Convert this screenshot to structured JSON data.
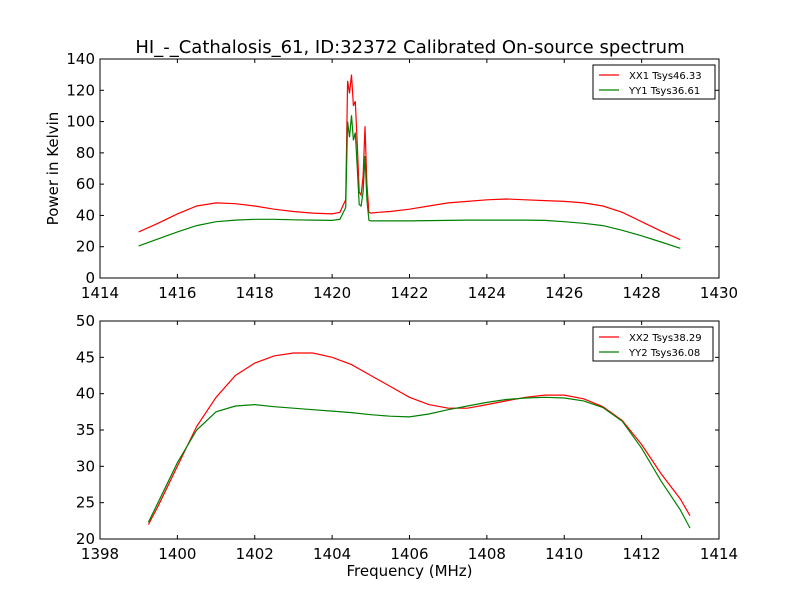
{
  "chart_data": [
    {
      "type": "line",
      "title": "HI_-_Cathalosis_61, ID:32372 Calibrated On-source spectrum",
      "xlabel": "",
      "ylabel": "Power in Kelvin",
      "xlim": [
        1414,
        1430
      ],
      "ylim": [
        0,
        140
      ],
      "xticks": [
        "1414",
        "1416",
        "1418",
        "1420",
        "1422",
        "1424",
        "1426",
        "1428",
        "1430"
      ],
      "yticks": [
        "0",
        "20",
        "40",
        "60",
        "80",
        "100",
        "120",
        "140"
      ],
      "legend_position": "top-right",
      "grid": false,
      "series": [
        {
          "name": "XX1 Tsys46.33",
          "color": "#ff0000",
          "x": [
            1415.0,
            1415.5,
            1416.0,
            1416.5,
            1417.0,
            1417.5,
            1418.0,
            1418.5,
            1419.0,
            1419.5,
            1420.0,
            1420.2,
            1420.35,
            1420.4,
            1420.45,
            1420.5,
            1420.55,
            1420.6,
            1420.65,
            1420.7,
            1420.75,
            1420.8,
            1420.85,
            1420.9,
            1420.95,
            1421.0,
            1421.2,
            1421.5,
            1422.0,
            1422.5,
            1423.0,
            1423.5,
            1424.0,
            1424.5,
            1425.0,
            1425.5,
            1426.0,
            1426.5,
            1427.0,
            1427.5,
            1428.0,
            1428.5,
            1429.0
          ],
          "values": [
            29.5,
            35,
            41,
            46,
            48,
            47.5,
            46,
            44,
            42.5,
            41.5,
            41,
            42,
            50,
            126,
            118,
            130,
            110,
            113,
            85,
            55,
            53,
            65,
            97,
            60,
            42,
            41.5,
            42,
            42.5,
            44,
            46,
            48,
            49,
            50,
            50.5,
            50,
            49.5,
            49,
            48,
            46,
            42,
            36,
            30,
            24.5
          ]
        },
        {
          "name": "YY1 Tsys36.61",
          "color": "#008000",
          "x": [
            1415.0,
            1415.5,
            1416.0,
            1416.5,
            1417.0,
            1417.5,
            1418.0,
            1418.5,
            1419.0,
            1419.5,
            1420.0,
            1420.2,
            1420.35,
            1420.4,
            1420.45,
            1420.5,
            1420.55,
            1420.6,
            1420.65,
            1420.7,
            1420.75,
            1420.8,
            1420.85,
            1420.9,
            1420.95,
            1421.0,
            1421.2,
            1421.5,
            1422.0,
            1422.5,
            1423.0,
            1423.5,
            1424.0,
            1424.5,
            1425.0,
            1425.5,
            1426.0,
            1426.5,
            1427.0,
            1427.5,
            1428.0,
            1428.5,
            1429.0
          ],
          "values": [
            20.5,
            25,
            29.5,
            33.5,
            36,
            37,
            37.5,
            37.5,
            37.2,
            37,
            36.8,
            37.5,
            45,
            100,
            90,
            104,
            88,
            93,
            70,
            47,
            46,
            55,
            78,
            50,
            37,
            36.5,
            36.5,
            36.5,
            36.5,
            36.7,
            36.8,
            37,
            37,
            37,
            37,
            36.8,
            36,
            35,
            33.5,
            30.5,
            27,
            23,
            19
          ]
        }
      ]
    },
    {
      "type": "line",
      "title": "",
      "xlabel": "Frequency (MHz)",
      "ylabel": "",
      "xlim": [
        1398,
        1414
      ],
      "ylim": [
        20,
        50
      ],
      "xticks": [
        "1398",
        "1400",
        "1402",
        "1404",
        "1406",
        "1408",
        "1410",
        "1412",
        "1414"
      ],
      "yticks": [
        "20",
        "25",
        "30",
        "35",
        "40",
        "45",
        "50"
      ],
      "legend_position": "top-right",
      "grid": false,
      "series": [
        {
          "name": "XX2 Tsys38.29",
          "color": "#ff0000",
          "x": [
            1399.25,
            1399.5,
            1400.0,
            1400.5,
            1401.0,
            1401.5,
            1402.0,
            1402.5,
            1403.0,
            1403.5,
            1404.0,
            1404.5,
            1405.0,
            1405.5,
            1406.0,
            1406.5,
            1407.0,
            1407.5,
            1408.0,
            1408.5,
            1409.0,
            1409.5,
            1410.0,
            1410.5,
            1411.0,
            1411.5,
            1412.0,
            1412.5,
            1413.0,
            1413.25
          ],
          "values": [
            22.0,
            24.5,
            30,
            35.5,
            39.5,
            42.5,
            44.2,
            45.2,
            45.6,
            45.6,
            45,
            44,
            42.5,
            41,
            39.5,
            38.5,
            38,
            38,
            38.5,
            39,
            39.5,
            39.8,
            39.8,
            39.3,
            38.2,
            36.3,
            33,
            29,
            25.5,
            23.2
          ]
        },
        {
          "name": "YY2 Tsys36.08",
          "color": "#008000",
          "x": [
            1399.25,
            1399.5,
            1400.0,
            1400.5,
            1401.0,
            1401.5,
            1402.0,
            1402.5,
            1403.0,
            1403.5,
            1404.0,
            1404.5,
            1405.0,
            1405.5,
            1406.0,
            1406.5,
            1407.0,
            1407.5,
            1408.0,
            1408.5,
            1409.0,
            1409.5,
            1410.0,
            1410.5,
            1411.0,
            1411.5,
            1412.0,
            1412.5,
            1413.0,
            1413.25
          ],
          "values": [
            22.3,
            25,
            30.5,
            35,
            37.5,
            38.3,
            38.5,
            38.2,
            38,
            37.8,
            37.6,
            37.4,
            37.1,
            36.9,
            36.8,
            37.2,
            37.8,
            38.3,
            38.8,
            39.2,
            39.4,
            39.5,
            39.4,
            39,
            38.1,
            36.2,
            32.5,
            28,
            24,
            21.5
          ]
        }
      ]
    }
  ]
}
